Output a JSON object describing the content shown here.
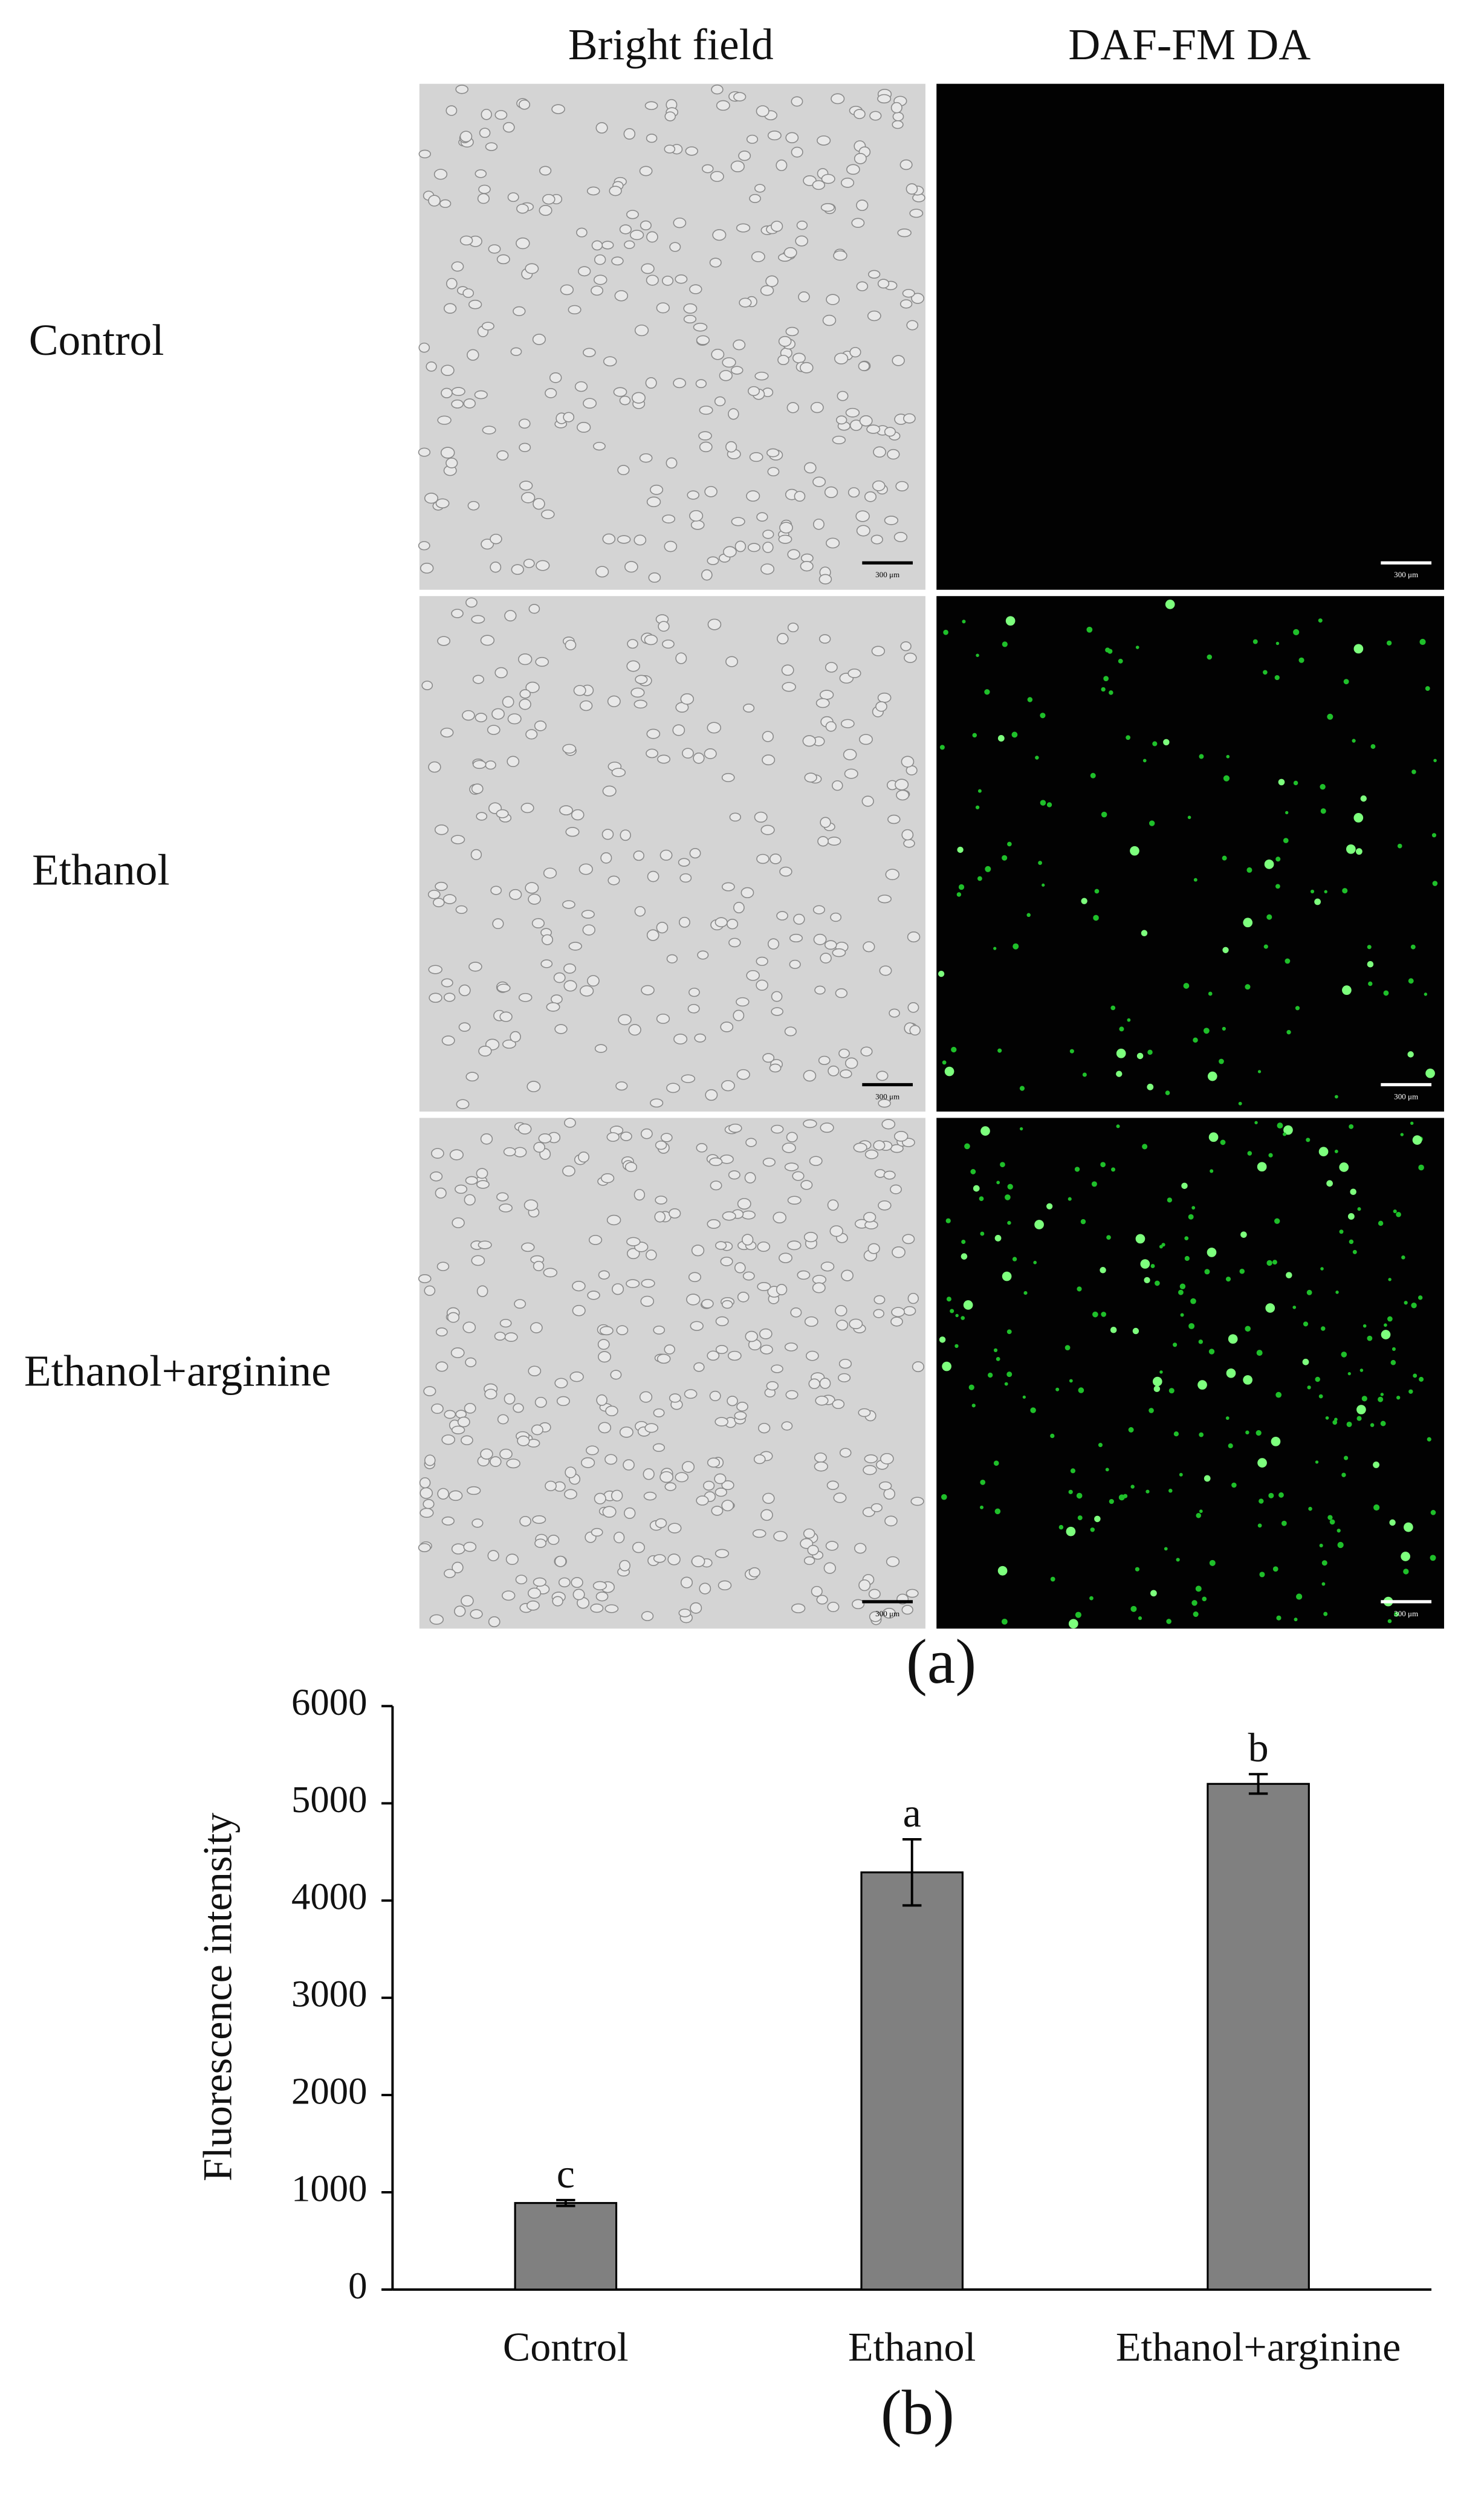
{
  "panel_a": {
    "column_headers": [
      "Bright field",
      "DAF-FM DA"
    ],
    "row_labels": [
      "Control",
      "Ethanol",
      "Ethanol+arginine"
    ],
    "scale_bar_label": "300 μm",
    "panel_label": "(a)"
  },
  "chart_data": {
    "type": "bar",
    "panel_label": "(b)",
    "ylabel": "Fluorescence intensity",
    "categories": [
      "Control",
      "Ethanol",
      "Ethanol+arginine"
    ],
    "values": [
      890,
      4290,
      5200
    ],
    "errors": [
      30,
      340,
      100
    ],
    "annotations": [
      "c",
      "a",
      "b"
    ],
    "color": "#808080",
    "ylim": [
      0,
      6000
    ],
    "yticks": [
      0,
      1000,
      2000,
      3000,
      4000,
      5000,
      6000
    ]
  }
}
